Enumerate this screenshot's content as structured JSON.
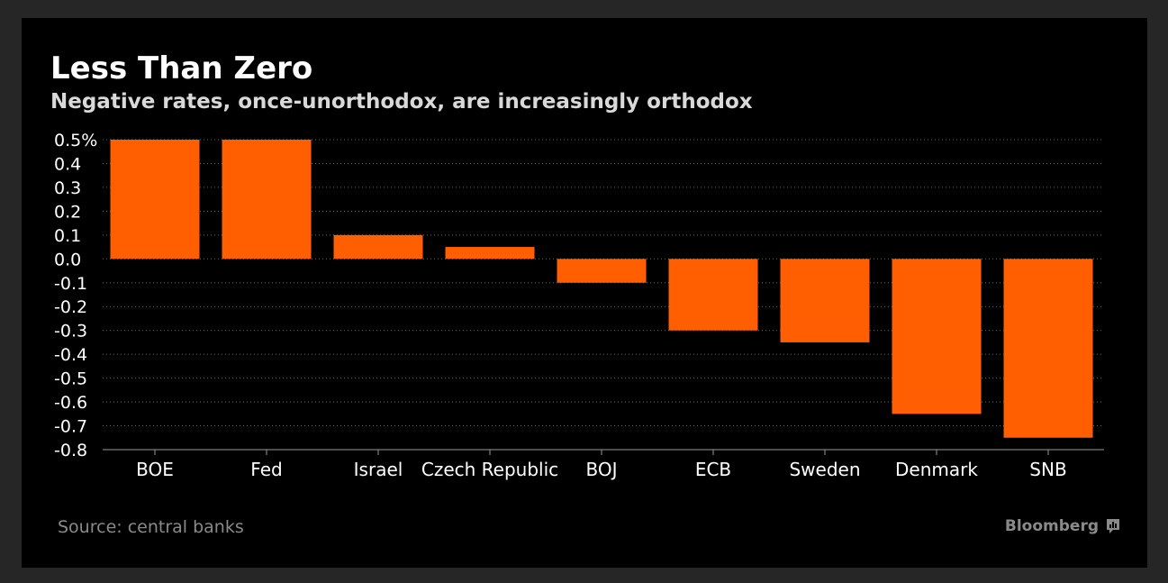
{
  "title": "Less Than Zero",
  "subtitle": "Negative rates, once-unorthodox, are increasingly orthodox",
  "source": "Source: central banks",
  "brand": "Bloomberg",
  "colors": {
    "background": "#000000",
    "bar": "#ff5f00",
    "text": "#ffffff",
    "grid": "#6b6b6b",
    "muted": "#8a8a8a"
  },
  "chart_data": {
    "type": "bar",
    "categories": [
      "BOE",
      "Fed",
      "Israel",
      "Czech Republic",
      "BOJ",
      "ECB",
      "Sweden",
      "Denmark",
      "SNB"
    ],
    "values": [
      0.5,
      0.5,
      0.1,
      0.05,
      -0.1,
      -0.3,
      -0.35,
      -0.65,
      -0.75
    ],
    "ylim": [
      -0.8,
      0.5
    ],
    "yticks": [
      0.5,
      0.4,
      0.3,
      0.2,
      0.1,
      0.0,
      -0.1,
      -0.2,
      -0.3,
      -0.4,
      -0.5,
      -0.6,
      -0.7,
      -0.8
    ],
    "ytick_labels": [
      "0.5%",
      "0.4",
      "0.3",
      "0.2",
      "0.1",
      "0.0",
      "-0.1",
      "-0.2",
      "-0.3",
      "-0.4",
      "-0.5",
      "-0.6",
      "-0.7",
      "-0.8"
    ],
    "grid": true,
    "legend": "none"
  }
}
